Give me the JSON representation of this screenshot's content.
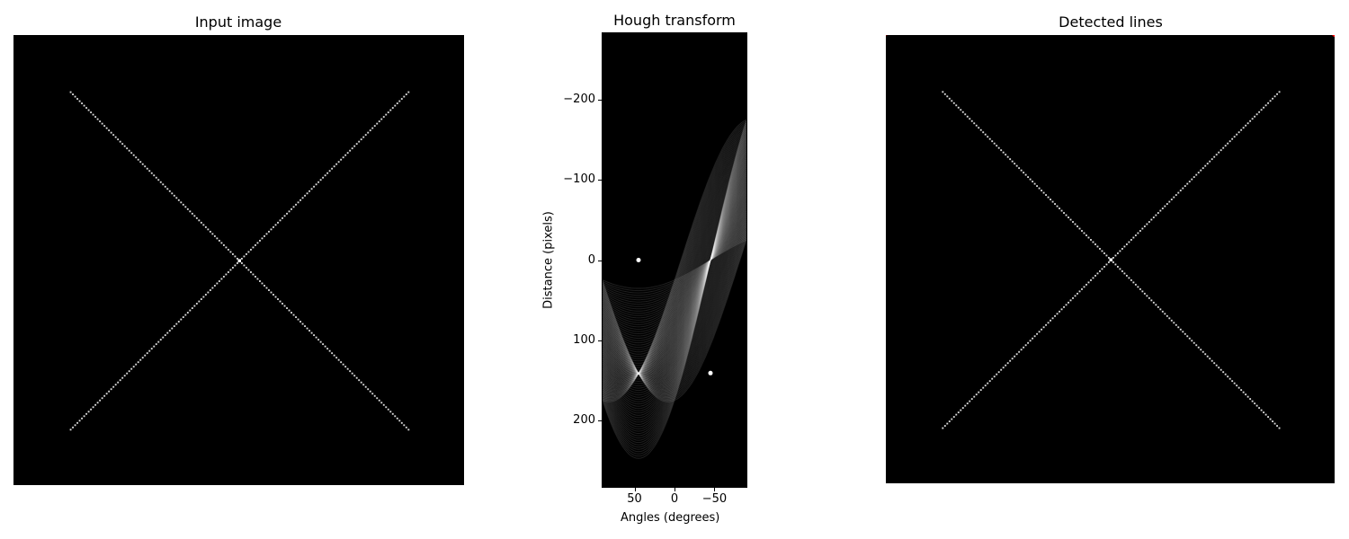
{
  "chart_data": [
    {
      "type": "image",
      "title": "Input image",
      "image_size": [
        200,
        200
      ],
      "axis": "off",
      "segments": [
        {
          "from": [
            25,
            25
          ],
          "to": [
            175,
            175
          ]
        },
        {
          "from": [
            25,
            175
          ],
          "to": [
            175,
            25
          ]
        }
      ],
      "colors": {
        "background": "#000000",
        "line": "#d8d8d8"
      }
    },
    {
      "type": "heatmap",
      "title": "Hough transform",
      "xlabel": "Angles (degrees)",
      "ylabel": "Distance (pixels)",
      "xlim": [
        90,
        -90
      ],
      "ylim": [
        -283,
        283
      ],
      "xticks": [
        50,
        0,
        -50
      ],
      "xtick_labels": [
        "50",
        "0",
        "−50"
      ],
      "yticks": [
        -200,
        -100,
        0,
        100,
        200
      ],
      "ytick_labels": [
        "−200",
        "−100",
        "0",
        "100",
        "200"
      ],
      "peaks": [
        {
          "angle": 45,
          "distance": 0
        },
        {
          "angle": -45,
          "distance": 141
        }
      ],
      "colormap": "gray"
    },
    {
      "type": "image",
      "title": "Detected lines",
      "image_size": [
        200,
        200
      ],
      "axis": "off",
      "segments": [
        {
          "from": [
            25,
            25
          ],
          "to": [
            175,
            175
          ]
        },
        {
          "from": [
            25,
            175
          ],
          "to": [
            175,
            25
          ]
        }
      ],
      "detected_lines": [
        {
          "angle": 45,
          "distance": 0
        },
        {
          "angle": -45,
          "distance": 141
        }
      ],
      "colors": {
        "background": "#000000",
        "line": "#d8d8d8",
        "detected": "#ff0000"
      }
    }
  ]
}
